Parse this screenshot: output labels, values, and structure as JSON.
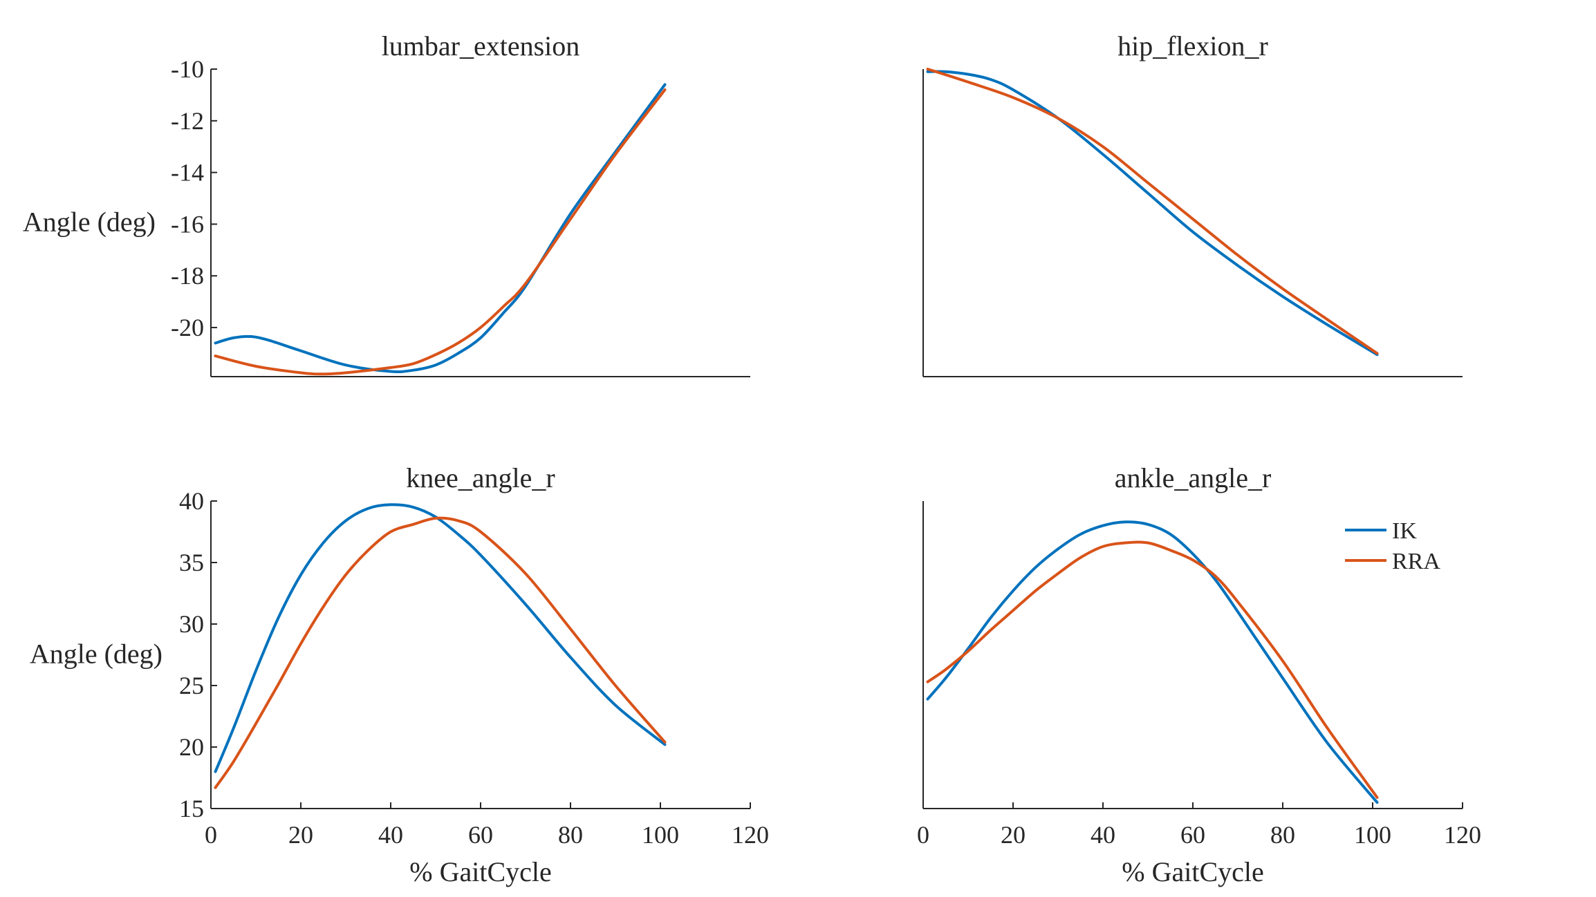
{
  "figure": {
    "xlabel": "% GaitCycle",
    "ylabel": "Angle (deg)",
    "legend": {
      "placement": "inside-top-right of ankle_angle_r panel",
      "entries": [
        {
          "name": "IK",
          "color": "#0072BD"
        },
        {
          "name": "RRA",
          "color": "#D95319"
        }
      ]
    }
  },
  "chart_data": [
    {
      "type": "line",
      "title": "lumbar_extension",
      "ylabel": "Angle (deg)",
      "xlabel": "",
      "xlim": [
        0,
        120
      ],
      "ylim": [
        -21.9,
        -10
      ],
      "yticks": [
        "-10",
        "-12",
        "-14",
        "-16",
        "-18",
        "-20"
      ],
      "ytick_values": [
        -10,
        -12,
        -14,
        -16,
        -18,
        -20
      ],
      "xticks": [],
      "series": [
        {
          "name": "IK",
          "color": "#0072BD",
          "x": [
            1,
            5,
            9,
            13,
            20,
            30,
            40,
            45,
            50,
            55,
            60,
            65,
            70,
            80,
            90,
            101
          ],
          "y": [
            -20.6,
            -20.4,
            -20.35,
            -20.5,
            -20.9,
            -21.45,
            -21.7,
            -21.65,
            -21.45,
            -21.0,
            -20.4,
            -19.45,
            -18.4,
            -15.6,
            -13.2,
            -10.6
          ]
        },
        {
          "name": "RRA",
          "color": "#D95319",
          "x": [
            1,
            10,
            20,
            25,
            30,
            40,
            45,
            50,
            55,
            60,
            65,
            70,
            80,
            90,
            101
          ],
          "y": [
            -21.1,
            -21.5,
            -21.75,
            -21.8,
            -21.75,
            -21.55,
            -21.4,
            -21.05,
            -20.6,
            -20.0,
            -19.2,
            -18.3,
            -15.8,
            -13.3,
            -10.8
          ]
        }
      ]
    },
    {
      "type": "line",
      "title": "hip_flexion_r",
      "ylabel": "",
      "xlabel": "",
      "xlim": [
        0,
        120
      ],
      "ylim": [
        -21.9,
        -10
      ],
      "yticks": [],
      "xticks": [],
      "series": [
        {
          "name": "IK",
          "color": "#0072BD",
          "x": [
            1,
            5,
            10,
            15,
            20,
            30,
            40,
            50,
            60,
            70,
            80,
            90,
            101
          ],
          "y": [
            -10.1,
            -10.1,
            -10.2,
            -10.4,
            -10.8,
            -11.9,
            -13.3,
            -14.8,
            -16.3,
            -17.6,
            -18.8,
            -19.9,
            -21.05
          ]
        },
        {
          "name": "RRA",
          "color": "#D95319",
          "x": [
            1,
            10,
            20,
            30,
            40,
            50,
            60,
            70,
            80,
            90,
            101
          ],
          "y": [
            -10.0,
            -10.5,
            -11.1,
            -11.9,
            -13.0,
            -14.4,
            -15.8,
            -17.2,
            -18.5,
            -19.7,
            -21.0
          ]
        }
      ]
    },
    {
      "type": "line",
      "title": "knee_angle_r",
      "ylabel": "Angle (deg)",
      "xlabel": "% GaitCycle",
      "xlim": [
        0,
        120
      ],
      "ylim": [
        15,
        40
      ],
      "yticks": [
        "40",
        "35",
        "30",
        "25",
        "20",
        "15"
      ],
      "ytick_values": [
        40,
        35,
        30,
        25,
        20,
        15
      ],
      "xticks": [
        "0",
        "20",
        "40",
        "60",
        "80",
        "100",
        "120"
      ],
      "xtick_values": [
        0,
        20,
        40,
        60,
        80,
        100,
        120
      ],
      "series": [
        {
          "name": "IK",
          "color": "#0072BD",
          "x": [
            1,
            5,
            10,
            15,
            20,
            25,
            30,
            35,
            40,
            45,
            50,
            55,
            60,
            70,
            80,
            90,
            101
          ],
          "y": [
            18.0,
            21.5,
            26.2,
            30.5,
            34.0,
            36.6,
            38.4,
            39.4,
            39.7,
            39.5,
            38.7,
            37.3,
            35.6,
            31.6,
            27.3,
            23.4,
            20.2
          ]
        },
        {
          "name": "RRA",
          "color": "#D95319",
          "x": [
            1,
            5,
            10,
            15,
            20,
            25,
            30,
            35,
            40,
            45,
            50,
            55,
            60,
            70,
            80,
            90,
            101
          ],
          "y": [
            16.7,
            18.8,
            21.9,
            25.1,
            28.4,
            31.4,
            34.0,
            36.0,
            37.5,
            38.1,
            38.6,
            38.4,
            37.5,
            34.1,
            29.6,
            25.0,
            20.4
          ]
        }
      ]
    },
    {
      "type": "line",
      "title": "ankle_angle_r",
      "ylabel": "",
      "xlabel": "% GaitCycle",
      "xlim": [
        0,
        120
      ],
      "ylim": [
        15,
        40
      ],
      "yticks": [],
      "xticks": [
        "0",
        "20",
        "40",
        "60",
        "80",
        "100",
        "120"
      ],
      "xtick_values": [
        0,
        20,
        40,
        60,
        80,
        100,
        120
      ],
      "series": [
        {
          "name": "IK",
          "color": "#0072BD",
          "x": [
            1,
            5,
            10,
            15,
            20,
            25,
            30,
            35,
            40,
            45,
            50,
            55,
            60,
            65,
            70,
            80,
            90,
            101
          ],
          "y": [
            23.9,
            25.6,
            28.0,
            30.5,
            32.7,
            34.6,
            36.1,
            37.3,
            38.0,
            38.3,
            38.1,
            37.3,
            35.7,
            33.6,
            31.0,
            25.6,
            20.3,
            15.5
          ]
        },
        {
          "name": "RRA",
          "color": "#D95319",
          "x": [
            1,
            5,
            10,
            15,
            20,
            25,
            30,
            35,
            40,
            45,
            50,
            55,
            60,
            65,
            70,
            80,
            90,
            101
          ],
          "y": [
            25.3,
            26.3,
            27.8,
            29.5,
            31.1,
            32.7,
            34.1,
            35.4,
            36.3,
            36.6,
            36.6,
            36.0,
            35.2,
            33.9,
            31.8,
            27.0,
            21.5,
            15.9
          ]
        }
      ]
    }
  ]
}
